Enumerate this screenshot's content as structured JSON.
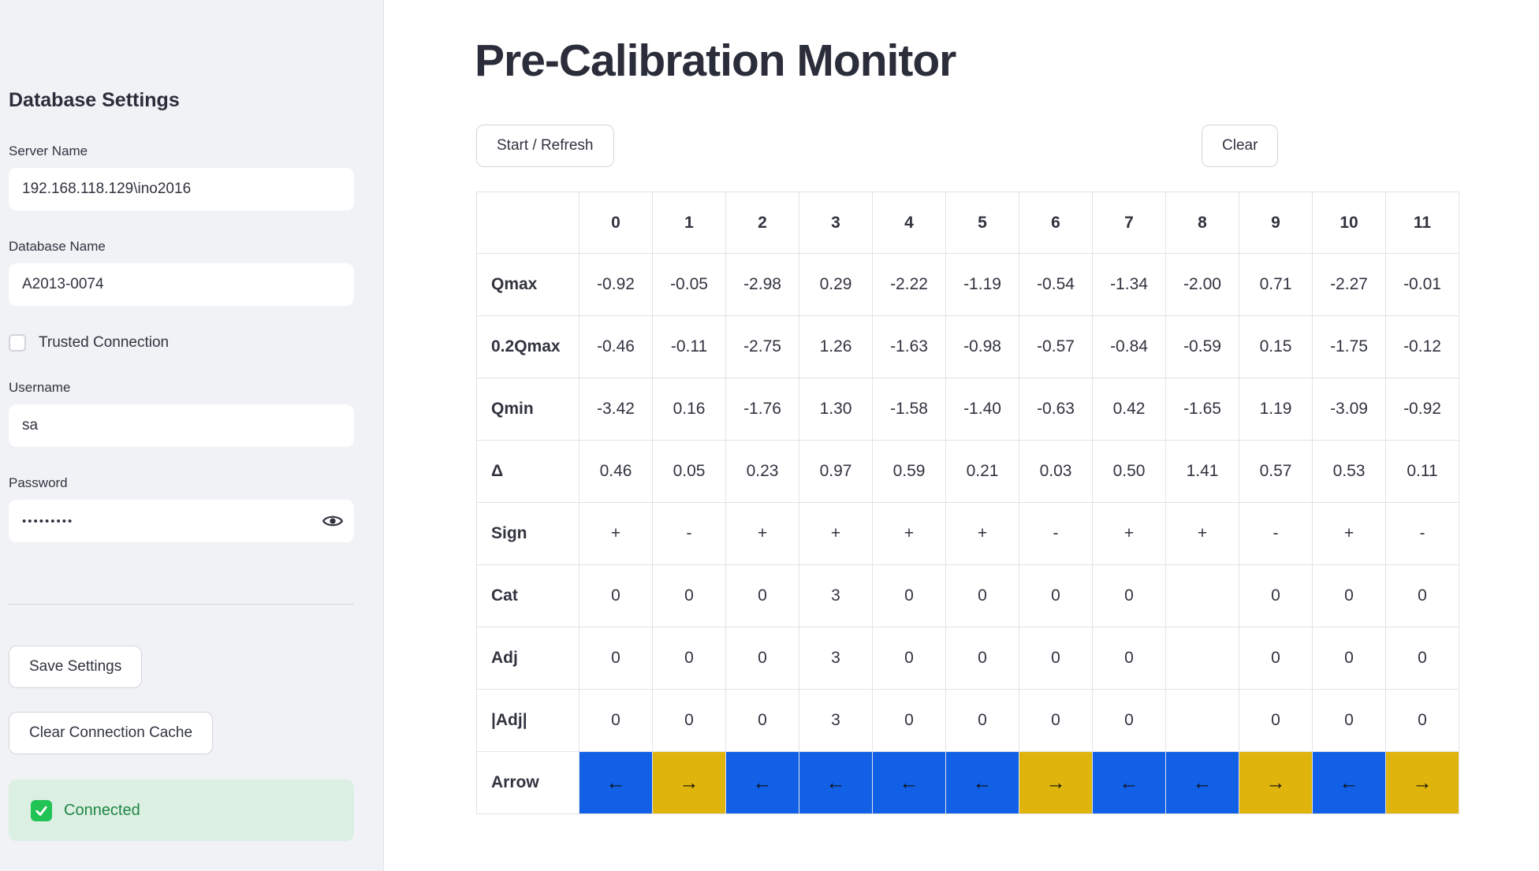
{
  "sidebar": {
    "title": "Database Settings",
    "server": {
      "label": "Server Name",
      "value": "192.168.118.129\\ino2016"
    },
    "database": {
      "label": "Database Name",
      "value": "A2013-0074"
    },
    "trusted": {
      "label": "Trusted Connection",
      "checked": false
    },
    "username": {
      "label": "Username",
      "value": "sa"
    },
    "password": {
      "label": "Password",
      "masked_value": "•••••••••"
    },
    "save_button": "Save Settings",
    "clear_cache_button": "Clear Connection Cache",
    "status": {
      "label": "Connected",
      "state": "success"
    }
  },
  "main": {
    "title": "Pre-Calibration Monitor",
    "start_button": "Start / Refresh",
    "clear_button": "Clear"
  },
  "table": {
    "columns": [
      "0",
      "1",
      "2",
      "3",
      "4",
      "5",
      "6",
      "7",
      "8",
      "9",
      "10",
      "11"
    ],
    "rows": [
      {
        "label": "Qmax",
        "values": [
          "-0.92",
          "-0.05",
          "-2.98",
          "0.29",
          "-2.22",
          "-1.19",
          "-0.54",
          "-1.34",
          "-2.00",
          "0.71",
          "-2.27",
          "-0.01"
        ]
      },
      {
        "label": "0.2Qmax",
        "values": [
          "-0.46",
          "-0.11",
          "-2.75",
          "1.26",
          "-1.63",
          "-0.98",
          "-0.57",
          "-0.84",
          "-0.59",
          "0.15",
          "-1.75",
          "-0.12"
        ]
      },
      {
        "label": "Qmin",
        "values": [
          "-3.42",
          "0.16",
          "-1.76",
          "1.30",
          "-1.58",
          "-1.40",
          "-0.63",
          "0.42",
          "-1.65",
          "1.19",
          "-3.09",
          "-0.92"
        ]
      },
      {
        "label": "Δ",
        "values": [
          "0.46",
          "0.05",
          "0.23",
          "0.97",
          "0.59",
          "0.21",
          "0.03",
          "0.50",
          "1.41",
          "0.57",
          "0.53",
          "0.11"
        ]
      },
      {
        "label": "Sign",
        "values": [
          "+",
          "-",
          "+",
          "+",
          "+",
          "+",
          "-",
          "+",
          "+",
          "-",
          "+",
          "-"
        ]
      },
      {
        "label": "Cat",
        "values": [
          "0",
          "0",
          "0",
          "3",
          "0",
          "0",
          "0",
          "0",
          "",
          "0",
          "0",
          "0"
        ]
      },
      {
        "label": "Adj",
        "values": [
          "0",
          "0",
          "0",
          "3",
          "0",
          "0",
          "0",
          "0",
          "",
          "0",
          "0",
          "0"
        ]
      },
      {
        "label": "|Adj|",
        "values": [
          "0",
          "0",
          "0",
          "3",
          "0",
          "0",
          "0",
          "0",
          "",
          "0",
          "0",
          "0"
        ]
      },
      {
        "label": "Arrow",
        "arrows": [
          "left",
          "right",
          "left",
          "left",
          "left",
          "left",
          "right",
          "left",
          "left",
          "right",
          "left",
          "right"
        ]
      }
    ],
    "arrow_glyphs": {
      "left": "←",
      "right": "→"
    }
  },
  "colors": {
    "arrow_left_bg": "#1160e6",
    "arrow_right_bg": "#deb40d",
    "success_icon": "#21c354",
    "success_text": "#1e8745",
    "success_bg": "#dcefe3",
    "sidebar_bg": "#f0f2f6",
    "text_dark": "#31333f"
  }
}
